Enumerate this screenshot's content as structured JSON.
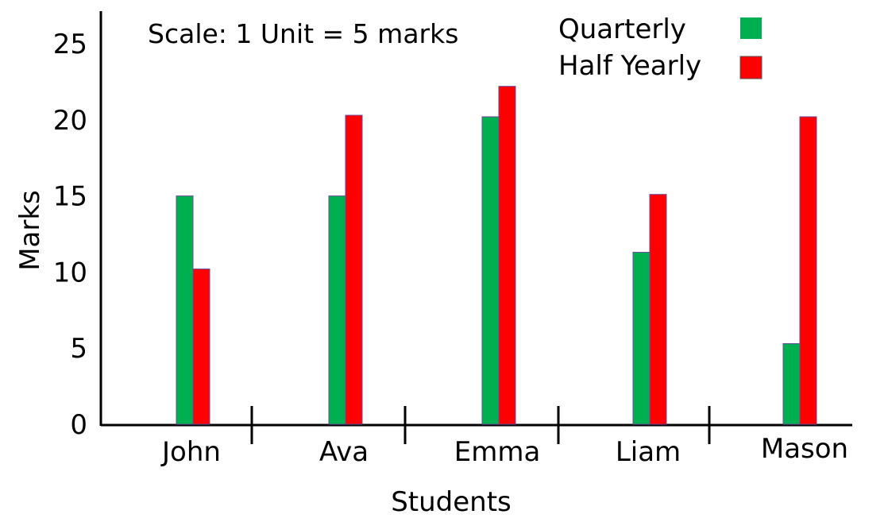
{
  "chart_data": {
    "type": "bar",
    "title": "",
    "annotation": "Scale: 1 Unit = 5 marks",
    "xlabel": "Students",
    "ylabel": "Marks",
    "categories": [
      "John",
      "Ava",
      "Emma",
      "Liam",
      "Mason"
    ],
    "series": [
      {
        "name": "Quarterly",
        "color": "#00b050",
        "values": [
          15,
          15,
          20.2,
          11.3,
          5.3
        ]
      },
      {
        "name": "Half Yearly",
        "color": "#ff0000",
        "values": [
          10.2,
          20.3,
          22.2,
          15.1,
          20.2
        ]
      }
    ],
    "yticks": [
      0,
      5,
      10,
      15,
      20,
      25
    ],
    "ylim": [
      0,
      25
    ],
    "grid": false,
    "legend_position": "top-right"
  }
}
